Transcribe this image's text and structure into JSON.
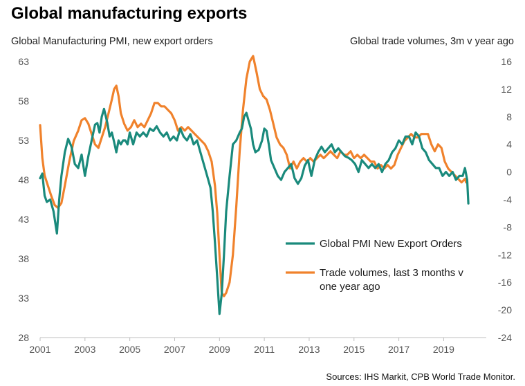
{
  "header": {
    "title": "Global manufacturing exports",
    "left_axis_title": "Global Manufacturing PMI, new export orders",
    "right_axis_title": "Global trade volumes,  3m v year ago"
  },
  "source": "Sources: IHS Markit,  CPB World Trade Monitor.",
  "chart_data": {
    "type": "line",
    "title": "Global manufacturing exports",
    "xlabel": "",
    "ylabel": "Global Manufacturing PMI, new export orders",
    "y2label": "Global trade volumes,  3m v year ago",
    "xlim": [
      2001.0,
      2020.9
    ],
    "ylim": [
      28,
      63
    ],
    "y2lim": [
      -24,
      16
    ],
    "x_ticks": [
      2001,
      2003,
      2005,
      2007,
      2009,
      2011,
      2013,
      2015,
      2017,
      2019
    ],
    "x_tick_labels": [
      "2001",
      "2003",
      "2005",
      "2007",
      "2009",
      "2011",
      "2013",
      "2015",
      "2017",
      "2019"
    ],
    "y_ticks": [
      28,
      33,
      38,
      43,
      48,
      53,
      58,
      63
    ],
    "y_tick_labels": [
      "28",
      "33",
      "38",
      "43",
      "48",
      "53",
      "58",
      "63"
    ],
    "y2_ticks": [
      -24,
      -20,
      -16,
      -12,
      -8,
      -4,
      0,
      4,
      8,
      12,
      16
    ],
    "y2_tick_labels": [
      "-24",
      "-20",
      "-16",
      "-12",
      "-8",
      "-4",
      "0",
      "4",
      "8",
      "12",
      "16"
    ],
    "grid": false,
    "legend_position": "lower-right",
    "series": [
      {
        "name": "Global PMI New Export Orders",
        "axis": "left",
        "color": "#1a8a7c",
        "x": [
          2001.0,
          2001.1,
          2001.2,
          2001.3,
          2001.45,
          2001.6,
          2001.75,
          2001.85,
          2001.95,
          2002.1,
          2002.25,
          2002.4,
          2002.55,
          2002.7,
          2002.85,
          2003.0,
          2003.15,
          2003.3,
          2003.45,
          2003.55,
          2003.65,
          2003.75,
          2003.85,
          2004.0,
          2004.1,
          2004.2,
          2004.3,
          2004.4,
          2004.5,
          2004.6,
          2004.7,
          2004.8,
          2004.9,
          2005.0,
          2005.15,
          2005.3,
          2005.45,
          2005.6,
          2005.75,
          2005.9,
          2006.05,
          2006.2,
          2006.35,
          2006.5,
          2006.65,
          2006.8,
          2006.95,
          2007.1,
          2007.25,
          2007.4,
          2007.55,
          2007.7,
          2007.85,
          2008.0,
          2008.15,
          2008.3,
          2008.45,
          2008.6,
          2008.7,
          2008.8,
          2008.9,
          2009.0,
          2009.1,
          2009.2,
          2009.3,
          2009.45,
          2009.6,
          2009.75,
          2009.9,
          2010.0,
          2010.1,
          2010.2,
          2010.3,
          2010.4,
          2010.5,
          2010.6,
          2010.75,
          2010.9,
          2011.0,
          2011.1,
          2011.2,
          2011.3,
          2011.45,
          2011.6,
          2011.75,
          2011.9,
          2012.05,
          2012.2,
          2012.35,
          2012.5,
          2012.65,
          2012.8,
          2012.95,
          2013.1,
          2013.25,
          2013.4,
          2013.55,
          2013.7,
          2013.85,
          2014.0,
          2014.15,
          2014.3,
          2014.45,
          2014.6,
          2014.75,
          2014.9,
          2015.05,
          2015.2,
          2015.35,
          2015.5,
          2015.65,
          2015.8,
          2015.95,
          2016.1,
          2016.25,
          2016.4,
          2016.55,
          2016.7,
          2016.85,
          2017.0,
          2017.15,
          2017.3,
          2017.45,
          2017.6,
          2017.75,
          2017.9,
          2018.05,
          2018.2,
          2018.35,
          2018.5,
          2018.65,
          2018.8,
          2018.95,
          2019.1,
          2019.25,
          2019.4,
          2019.55,
          2019.7,
          2019.85,
          2019.95,
          2020.05,
          2020.1
        ],
        "values": [
          48.2,
          48.8,
          46.0,
          45.2,
          45.5,
          44.0,
          41.2,
          45.5,
          48.5,
          51.5,
          53.2,
          52.2,
          50.0,
          49.5,
          51.2,
          48.5,
          51.0,
          53.0,
          55.0,
          55.2,
          54.0,
          56.0,
          57.0,
          55.2,
          53.5,
          54.0,
          52.8,
          51.5,
          53.0,
          52.5,
          53.0,
          53.0,
          52.5,
          54.0,
          52.5,
          54.0,
          53.5,
          54.0,
          53.5,
          54.5,
          54.2,
          54.8,
          54.0,
          53.5,
          54.0,
          53.0,
          53.5,
          53.0,
          54.5,
          53.5,
          53.0,
          53.8,
          52.5,
          53.0,
          51.5,
          50.0,
          48.5,
          47.0,
          44.0,
          40.0,
          35.5,
          31.0,
          33.5,
          38.5,
          44.0,
          48.5,
          52.5,
          53.0,
          54.0,
          54.5,
          56.0,
          56.5,
          55.5,
          54.5,
          52.5,
          51.5,
          51.8,
          53.0,
          54.5,
          54.2,
          52.5,
          50.5,
          49.5,
          48.5,
          48.0,
          49.0,
          49.5,
          50.0,
          48.2,
          47.5,
          48.2,
          49.8,
          50.5,
          48.5,
          50.5,
          51.5,
          52.2,
          51.5,
          52.0,
          52.5,
          51.5,
          52.0,
          51.5,
          51.0,
          50.8,
          50.5,
          50.0,
          49.0,
          50.5,
          50.0,
          49.5,
          50.0,
          49.5,
          50.0,
          49.0,
          50.0,
          50.5,
          51.5,
          52.0,
          53.0,
          52.5,
          53.5,
          53.5,
          52.5,
          54.0,
          53.5,
          52.0,
          51.5,
          50.5,
          50.0,
          49.5,
          49.5,
          48.5,
          49.0,
          48.5,
          49.0,
          48.0,
          48.5,
          48.5,
          49.5,
          48.0,
          45.0
        ]
      },
      {
        "name": "Trade volumes, last 3 months v one year ago",
        "axis": "right",
        "color": "#f0822c",
        "x": [
          2001.0,
          2001.1,
          2001.2,
          2001.35,
          2001.5,
          2001.65,
          2001.8,
          2001.95,
          2002.1,
          2002.3,
          2002.5,
          2002.7,
          2002.85,
          2003.0,
          2003.15,
          2003.3,
          2003.45,
          2003.6,
          2003.75,
          2003.9,
          2004.05,
          2004.2,
          2004.3,
          2004.4,
          2004.5,
          2004.6,
          2004.75,
          2004.9,
          2005.05,
          2005.2,
          2005.35,
          2005.5,
          2005.65,
          2005.8,
          2005.95,
          2006.1,
          2006.25,
          2006.4,
          2006.55,
          2006.7,
          2006.85,
          2007.0,
          2007.15,
          2007.3,
          2007.45,
          2007.6,
          2007.75,
          2007.9,
          2008.05,
          2008.2,
          2008.35,
          2008.5,
          2008.65,
          2008.8,
          2008.9,
          2009.0,
          2009.1,
          2009.2,
          2009.3,
          2009.45,
          2009.6,
          2009.75,
          2009.9,
          2010.05,
          2010.2,
          2010.35,
          2010.5,
          2010.65,
          2010.8,
          2010.95,
          2011.1,
          2011.25,
          2011.4,
          2011.55,
          2011.7,
          2011.85,
          2012.0,
          2012.15,
          2012.3,
          2012.45,
          2012.6,
          2012.75,
          2012.9,
          2013.05,
          2013.2,
          2013.35,
          2013.5,
          2013.65,
          2013.8,
          2013.95,
          2014.1,
          2014.25,
          2014.4,
          2014.55,
          2014.7,
          2014.85,
          2015.0,
          2015.15,
          2015.3,
          2015.45,
          2015.6,
          2015.75,
          2015.9,
          2016.05,
          2016.2,
          2016.35,
          2016.5,
          2016.65,
          2016.8,
          2016.95,
          2017.1,
          2017.25,
          2017.4,
          2017.55,
          2017.7,
          2017.85,
          2018.0,
          2018.15,
          2018.3,
          2018.45,
          2018.6,
          2018.75,
          2018.9,
          2019.05,
          2019.2,
          2019.35,
          2019.5,
          2019.65,
          2019.8,
          2019.95,
          2020.0,
          2020.05
        ],
        "values": [
          6.8,
          2.0,
          -0.5,
          -2.0,
          -3.5,
          -4.8,
          -5.2,
          -4.5,
          -2.0,
          1.5,
          4.5,
          6.0,
          7.5,
          7.8,
          7.0,
          5.5,
          4.0,
          3.5,
          5.0,
          6.5,
          8.5,
          10.5,
          12.0,
          12.5,
          11.0,
          8.5,
          7.0,
          6.0,
          6.5,
          7.5,
          6.5,
          7.0,
          6.5,
          7.5,
          8.5,
          10.0,
          10.0,
          9.5,
          9.5,
          9.0,
          8.5,
          7.5,
          6.0,
          6.5,
          6.0,
          6.5,
          6.0,
          5.5,
          5.0,
          4.5,
          4.0,
          3.0,
          1.5,
          -2.0,
          -6.0,
          -12.0,
          -17.5,
          -18.0,
          -17.5,
          -16.0,
          -12.0,
          -5.0,
          3.0,
          9.0,
          13.5,
          16.0,
          16.8,
          14.5,
          12.0,
          11.0,
          10.5,
          9.0,
          7.0,
          5.0,
          4.0,
          3.5,
          2.5,
          0.5,
          1.5,
          0.5,
          1.5,
          2.0,
          1.5,
          2.0,
          1.5,
          2.0,
          2.5,
          2.0,
          2.5,
          3.0,
          2.5,
          2.0,
          3.0,
          2.5,
          2.5,
          3.0,
          2.0,
          2.5,
          2.0,
          2.5,
          2.0,
          1.5,
          1.5,
          0.5,
          1.0,
          0.5,
          1.0,
          0.5,
          1.0,
          2.5,
          3.5,
          4.5,
          5.0,
          5.5,
          5.0,
          5.0,
          5.5,
          5.5,
          5.5,
          4.0,
          3.0,
          4.0,
          3.5,
          1.5,
          0.5,
          0.0,
          -0.5,
          -1.0,
          -1.5,
          -1.0,
          -1.5,
          -1.5
        ]
      }
    ]
  }
}
